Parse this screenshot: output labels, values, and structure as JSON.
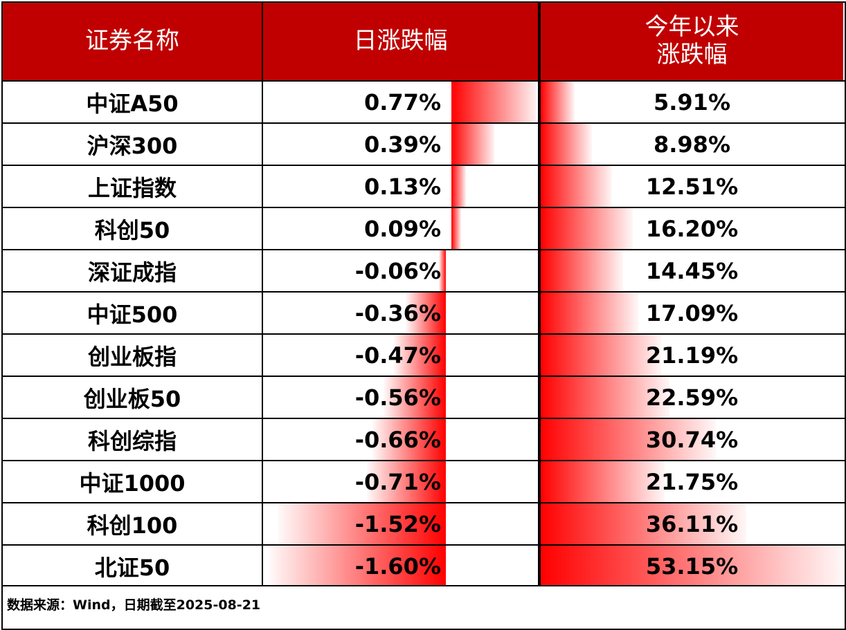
{
  "headers": {
    "name": "证券名称",
    "daily": "日涨跌幅",
    "ytd_line1": "今年以来",
    "ytd_line2": "涨跌幅"
  },
  "chart_data": {
    "type": "table",
    "columns": [
      "证券名称",
      "日涨跌幅",
      "今年以来涨跌幅"
    ],
    "rows": [
      {
        "name": "中证A50",
        "daily": 0.77,
        "daily_label": "0.77%",
        "ytd": 5.91,
        "ytd_label": "5.91%"
      },
      {
        "name": "沪深300",
        "daily": 0.39,
        "daily_label": "0.39%",
        "ytd": 8.98,
        "ytd_label": "8.98%"
      },
      {
        "name": "上证指数",
        "daily": 0.13,
        "daily_label": "0.13%",
        "ytd": 12.51,
        "ytd_label": "12.51%"
      },
      {
        "name": "科创50",
        "daily": 0.09,
        "daily_label": "0.09%",
        "ytd": 16.2,
        "ytd_label": "16.20%"
      },
      {
        "name": "深证成指",
        "daily": -0.06,
        "daily_label": "-0.06%",
        "ytd": 14.45,
        "ytd_label": "14.45%"
      },
      {
        "name": "中证500",
        "daily": -0.36,
        "daily_label": "-0.36%",
        "ytd": 17.09,
        "ytd_label": "17.09%"
      },
      {
        "name": "创业板指",
        "daily": -0.47,
        "daily_label": "-0.47%",
        "ytd": 21.19,
        "ytd_label": "21.19%"
      },
      {
        "name": "创业板50",
        "daily": -0.56,
        "daily_label": "-0.56%",
        "ytd": 22.59,
        "ytd_label": "22.59%"
      },
      {
        "name": "科创综指",
        "daily": -0.66,
        "daily_label": "-0.66%",
        "ytd": 30.74,
        "ytd_label": "30.74%"
      },
      {
        "name": "中证1000",
        "daily": -0.71,
        "daily_label": "-0.71%",
        "ytd": 21.75,
        "ytd_label": "21.75%"
      },
      {
        "name": "科创100",
        "daily": -1.52,
        "daily_label": "-1.52%",
        "ytd": 36.11,
        "ytd_label": "36.11%"
      },
      {
        "name": "北证50",
        "daily": -1.6,
        "daily_label": "-1.60%",
        "ytd": 53.15,
        "ytd_label": "53.15%"
      }
    ]
  },
  "footer": {
    "source": "数据来源：Wind，日期截至2025-08-21"
  },
  "colors": {
    "header_bg": "#c00000",
    "bar_red": "#ff0000"
  }
}
